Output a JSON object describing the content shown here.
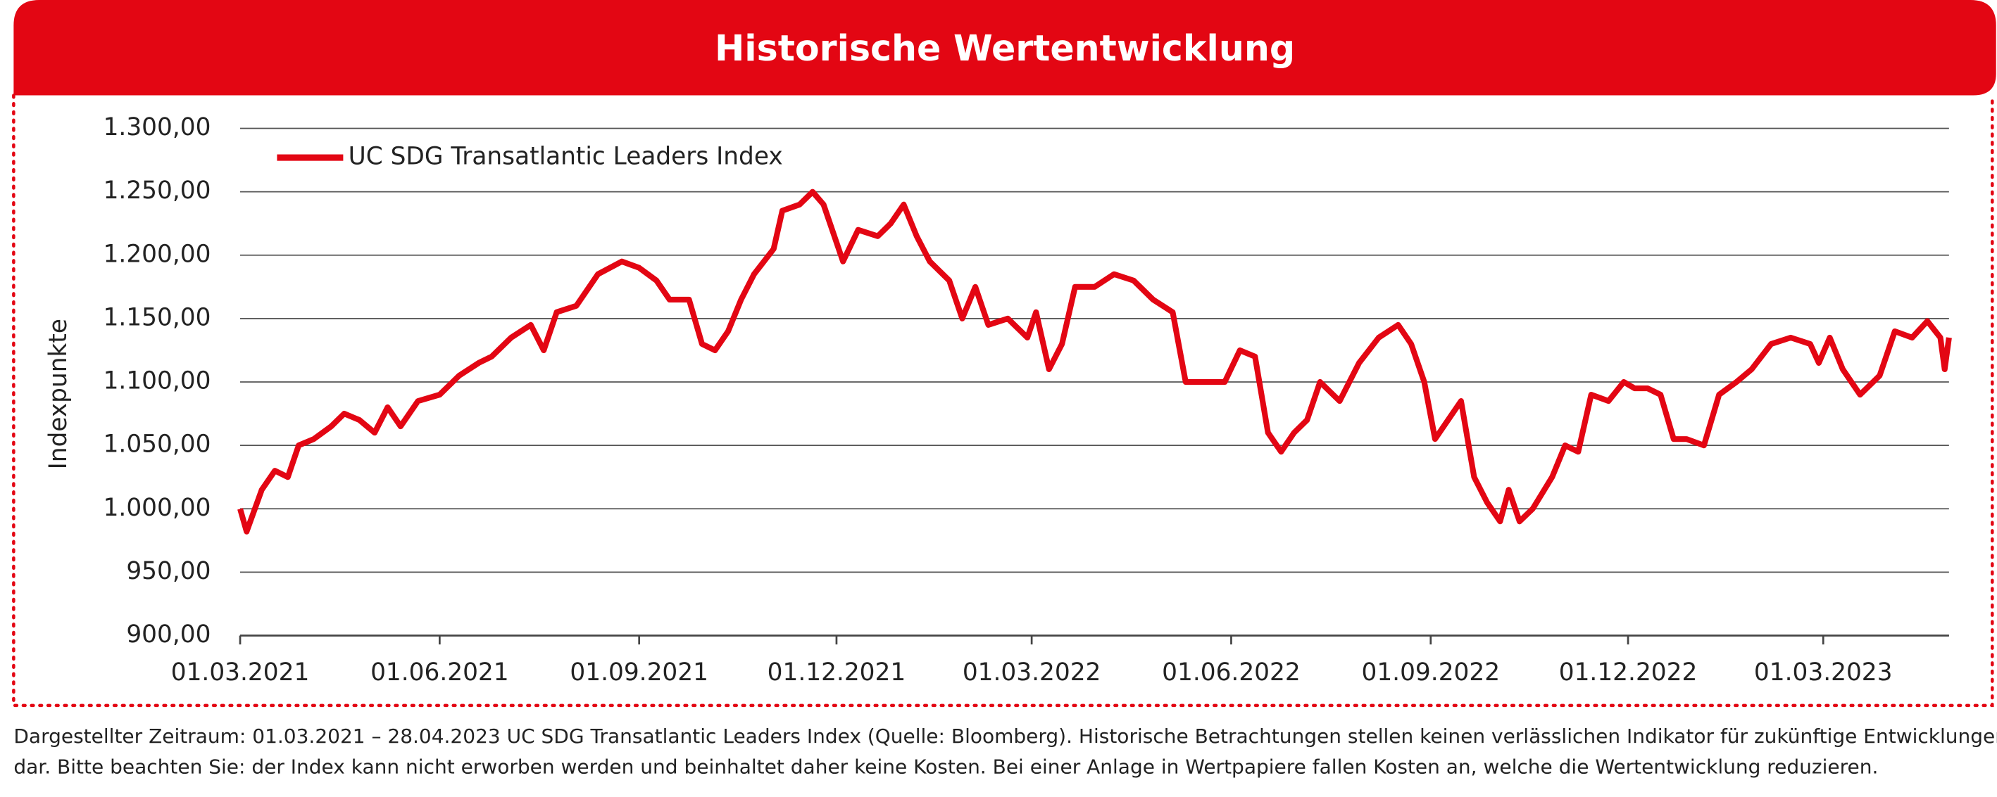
{
  "chart_data": {
    "type": "line",
    "title": "Historische Wertentwicklung",
    "ylabel": "Indexpunkte",
    "footnote": [
      "Dargestellter Zeitraum: 01.03.2021 – 28.04.2023 UC SDG Transatlantic Leaders Index (Quelle: Bloomberg). Historische Betrachtungen stellen keinen verlässlichen Indikator für zukünftige Entwicklungen",
      "dar. Bitte beachten Sie: der Index kann nicht erworben werden und beinhaltet daher keine Kosten. Bei einer Anlage in Wertpapiere fallen Kosten an, welche die Wertentwicklung reduzieren."
    ],
    "legend": "upper left",
    "grid": true,
    "xlim": [
      "2021-03-01",
      "2023-04-28"
    ],
    "xticks": [
      {
        "value": "2021-03-01",
        "label": "01.03.2021"
      },
      {
        "value": "2021-06-01",
        "label": "01.06.2021"
      },
      {
        "value": "2021-09-01",
        "label": "01.09.2021"
      },
      {
        "value": "2021-12-01",
        "label": "01.12.2021"
      },
      {
        "value": "2022-03-01",
        "label": "01.03.2022"
      },
      {
        "value": "2022-06-01",
        "label": "01.06.2022"
      },
      {
        "value": "2022-09-01",
        "label": "01.09.2022"
      },
      {
        "value": "2022-12-01",
        "label": "01.12.2022"
      },
      {
        "value": "2023-03-01",
        "label": "01.03.2023"
      }
    ],
    "ylim": [
      900,
      1300
    ],
    "yticks": [
      {
        "value": 900,
        "label": "900,00"
      },
      {
        "value": 950,
        "label": "950,00"
      },
      {
        "value": 1000,
        "label": "1.000,00"
      },
      {
        "value": 1050,
        "label": "1.050,00"
      },
      {
        "value": 1100,
        "label": "1.100,00"
      },
      {
        "value": 1150,
        "label": "1.150,00"
      },
      {
        "value": 1200,
        "label": "1.200,00"
      },
      {
        "value": 1250,
        "label": "1.250,00"
      },
      {
        "value": 1300,
        "label": "1.300,00"
      }
    ],
    "x": [
      "2021-03-01",
      "2021-03-04",
      "2021-03-11",
      "2021-03-17",
      "2021-03-23",
      "2021-03-28",
      "2021-04-04",
      "2021-04-12",
      "2021-04-18",
      "2021-04-25",
      "2021-05-02",
      "2021-05-08",
      "2021-05-14",
      "2021-05-22",
      "2021-06-01",
      "2021-06-10",
      "2021-06-19",
      "2021-06-25",
      "2021-07-04",
      "2021-07-13",
      "2021-07-19",
      "2021-07-25",
      "2021-08-03",
      "2021-08-13",
      "2021-08-24",
      "2021-09-01",
      "2021-09-09",
      "2021-09-15",
      "2021-09-24",
      "2021-09-30",
      "2021-10-06",
      "2021-10-12",
      "2021-10-18",
      "2021-10-24",
      "2021-11-02",
      "2021-11-06",
      "2021-11-14",
      "2021-11-20",
      "2021-11-25",
      "2021-11-29",
      "2021-12-04",
      "2021-12-11",
      "2021-12-20",
      "2021-12-26",
      "2022-01-01",
      "2022-01-07",
      "2022-01-13",
      "2022-01-22",
      "2022-01-28",
      "2022-02-03",
      "2022-02-09",
      "2022-02-18",
      "2022-02-27",
      "2022-03-03",
      "2022-03-09",
      "2022-03-15",
      "2022-03-21",
      "2022-03-30",
      "2022-04-08",
      "2022-04-17",
      "2022-04-26",
      "2022-05-05",
      "2022-05-11",
      "2022-05-20",
      "2022-05-29",
      "2022-06-05",
      "2022-06-12",
      "2022-06-18",
      "2022-06-24",
      "2022-06-30",
      "2022-07-06",
      "2022-07-12",
      "2022-07-21",
      "2022-07-30",
      "2022-08-08",
      "2022-08-17",
      "2022-08-23",
      "2022-08-29",
      "2022-09-03",
      "2022-09-09",
      "2022-09-15",
      "2022-09-21",
      "2022-09-27",
      "2022-10-03",
      "2022-10-07",
      "2022-10-12",
      "2022-10-18",
      "2022-10-27",
      "2022-11-02",
      "2022-11-08",
      "2022-11-14",
      "2022-11-22",
      "2022-11-29",
      "2022-12-04",
      "2022-12-10",
      "2022-12-16",
      "2022-12-22",
      "2022-12-28",
      "2023-01-05",
      "2023-01-12",
      "2023-01-20",
      "2023-01-27",
      "2023-02-05",
      "2023-02-14",
      "2023-02-23",
      "2023-02-27",
      "2023-03-04",
      "2023-03-10",
      "2023-03-18",
      "2023-03-27",
      "2023-04-03",
      "2023-04-11",
      "2023-04-18",
      "2023-04-24",
      "2023-04-26",
      "2023-04-28"
    ],
    "series": [
      {
        "name": "UC SDG Transatlantic Leaders Index",
        "color": "#e30613",
        "values": [
          1000,
          982,
          1015,
          1030,
          1025,
          1050,
          1055,
          1065,
          1075,
          1070,
          1060,
          1080,
          1065,
          1085,
          1090,
          1105,
          1115,
          1120,
          1135,
          1145,
          1125,
          1155,
          1160,
          1185,
          1195,
          1190,
          1180,
          1165,
          1165,
          1130,
          1125,
          1140,
          1165,
          1185,
          1205,
          1235,
          1240,
          1250,
          1240,
          1220,
          1195,
          1220,
          1215,
          1225,
          1240,
          1215,
          1195,
          1180,
          1150,
          1175,
          1145,
          1150,
          1135,
          1155,
          1110,
          1130,
          1175,
          1175,
          1185,
          1180,
          1165,
          1155,
          1100,
          1100,
          1100,
          1125,
          1120,
          1060,
          1045,
          1060,
          1070,
          1100,
          1085,
          1115,
          1135,
          1145,
          1130,
          1100,
          1055,
          1070,
          1085,
          1025,
          1005,
          990,
          1015,
          990,
          1000,
          1025,
          1050,
          1045,
          1090,
          1085,
          1100,
          1095,
          1095,
          1090,
          1055,
          1055,
          1050,
          1090,
          1100,
          1110,
          1130,
          1135,
          1130,
          1115,
          1135,
          1110,
          1090,
          1105,
          1140,
          1135,
          1148,
          1135,
          1110,
          1135
        ]
      }
    ]
  }
}
